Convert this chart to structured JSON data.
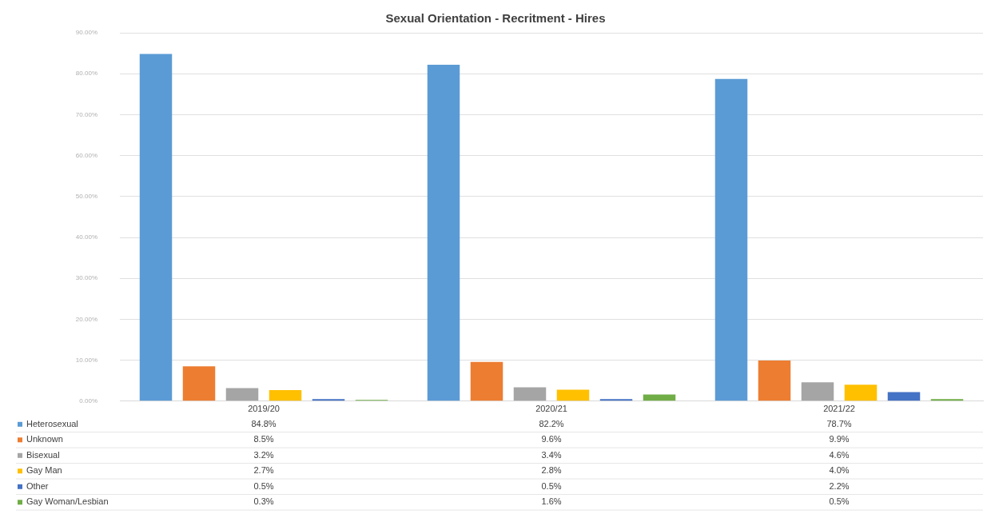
{
  "chart_data": {
    "type": "bar",
    "title": "Sexual Orientation - Recritment - Hires",
    "categories": [
      "2019/20",
      "2020/21",
      "2021/22"
    ],
    "series": [
      {
        "name": "Heterosexual",
        "color": "#5b9bd5",
        "values": [
          84.8,
          82.2,
          78.7
        ],
        "value_labels": [
          "84.8%",
          "82.2%",
          "78.7%"
        ]
      },
      {
        "name": "Unknown",
        "color": "#ed7d31",
        "values": [
          8.5,
          9.6,
          9.9
        ],
        "value_labels": [
          "8.5%",
          "9.6%",
          "9.9%"
        ]
      },
      {
        "name": "Bisexual",
        "color": "#a5a5a5",
        "values": [
          3.2,
          3.4,
          4.6
        ],
        "value_labels": [
          "3.2%",
          "3.4%",
          "4.6%"
        ]
      },
      {
        "name": "Gay Man",
        "color": "#ffc000",
        "values": [
          2.7,
          2.8,
          4.0
        ],
        "value_labels": [
          "2.7%",
          "2.8%",
          "4.0%"
        ]
      },
      {
        "name": "Other",
        "color": "#4472c4",
        "values": [
          0.5,
          0.5,
          2.2
        ],
        "value_labels": [
          "0.5%",
          "0.5%",
          "2.2%"
        ]
      },
      {
        "name": "Gay Woman/Lesbian",
        "color": "#70ad47",
        "values": [
          0.3,
          1.6,
          0.5
        ],
        "value_labels": [
          "0.3%",
          "1.6%",
          "0.5%"
        ]
      }
    ],
    "ylim": [
      0,
      90
    ],
    "yticks": [
      {
        "value": 0,
        "label": "0.00%"
      },
      {
        "value": 10,
        "label": "10.00%"
      },
      {
        "value": 20,
        "label": "20.00%"
      },
      {
        "value": 30,
        "label": "30.00%"
      },
      {
        "value": 40,
        "label": "40.00%"
      },
      {
        "value": 50,
        "label": "50.00%"
      },
      {
        "value": 60,
        "label": "60.00%"
      },
      {
        "value": 70,
        "label": "70.00%"
      },
      {
        "value": 80,
        "label": "80.00%"
      },
      {
        "value": 90,
        "label": "90.00%"
      }
    ],
    "grid": "y",
    "legend": "bottom"
  }
}
